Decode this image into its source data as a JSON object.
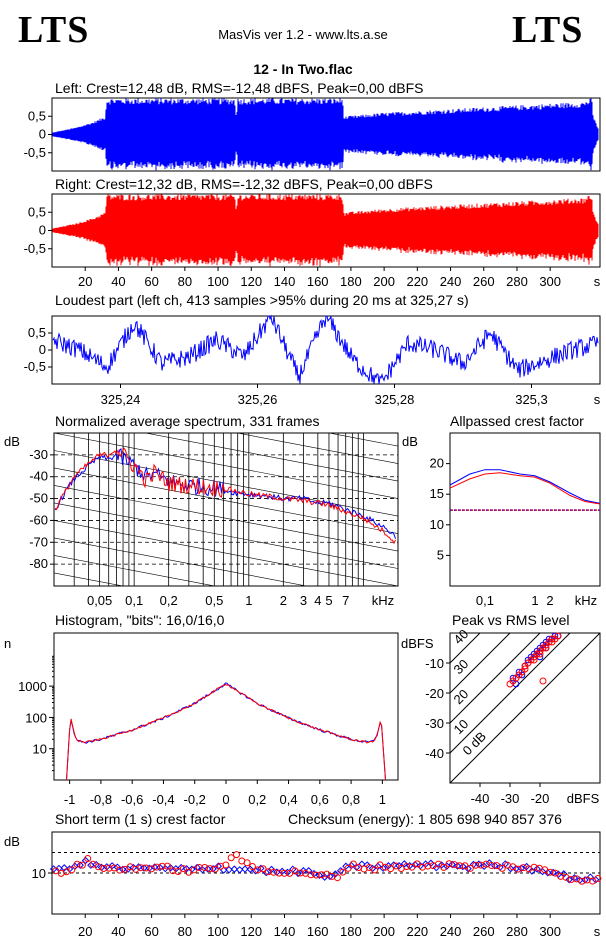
{
  "header": {
    "logo_left": "LTS",
    "logo_right": "LTS",
    "app_title": "MasVis ver 1.2 - www.lts.a.se",
    "file_title": "12 - In Two.flac"
  },
  "colors": {
    "left": "#0000ff",
    "right": "#ff0000"
  },
  "chart_data": [
    {
      "id": "left_waveform",
      "type": "area",
      "title": "Left: Crest=12,48 dB, RMS=-12,48 dBFS, Peak=0,00 dBFS",
      "yticks": [
        "0,5",
        "0",
        "-0,5"
      ],
      "ylim": [
        -1,
        1
      ],
      "xlim": [
        0,
        330
      ],
      "envelope": {
        "x": [
          0,
          5,
          15,
          25,
          32,
          33,
          100,
          110,
          111,
          112,
          175,
          176,
          177,
          200,
          240,
          280,
          320,
          322,
          325,
          326,
          330
        ],
        "amp": [
          0.05,
          0.1,
          0.2,
          0.35,
          0.5,
          1.0,
          1.0,
          1.0,
          0.55,
          1.0,
          1.0,
          0.45,
          0.5,
          0.6,
          0.7,
          0.8,
          0.9,
          0.95,
          1.0,
          0.5,
          0.05
        ]
      }
    },
    {
      "id": "right_waveform",
      "type": "area",
      "title": "Right: Crest=12,32 dB, RMS=-12,32 dBFS, Peak=0,00 dBFS",
      "yticks": [
        "0,5",
        "0",
        "-0,5"
      ],
      "ylim": [
        -1,
        1
      ],
      "xlim": [
        0,
        330
      ],
      "xticks": [
        "20",
        "40",
        "60",
        "80",
        "100",
        "120",
        "140",
        "160",
        "180",
        "200",
        "220",
        "240",
        "260",
        "280",
        "300"
      ],
      "xunit": "s",
      "envelope": {
        "x": [
          0,
          5,
          15,
          25,
          32,
          33,
          100,
          110,
          111,
          112,
          175,
          176,
          177,
          200,
          240,
          280,
          320,
          322,
          325,
          326,
          330
        ],
        "amp": [
          0.05,
          0.1,
          0.2,
          0.35,
          0.5,
          1.0,
          1.0,
          1.0,
          0.55,
          1.0,
          1.0,
          0.45,
          0.5,
          0.6,
          0.7,
          0.8,
          0.9,
          0.95,
          1.0,
          0.5,
          0.05
        ]
      }
    },
    {
      "id": "loudest_part",
      "type": "line",
      "title": "Loudest part (left  ch, 413 samples >95% during 20 ms at 325,27 s)",
      "yticks": [
        "0,5",
        "0",
        "-0,5"
      ],
      "ylim": [
        -1,
        1
      ],
      "xlim": [
        325.23,
        325.31
      ],
      "xticks": [
        "325,24",
        "325,26",
        "325,28",
        "325,3"
      ],
      "xtick_values": [
        325.24,
        325.26,
        325.28,
        325.3
      ],
      "xunit": "s",
      "coarse": {
        "x": [
          325.23,
          325.234,
          325.238,
          325.242,
          325.246,
          325.25,
          325.254,
          325.258,
          325.262,
          325.266,
          325.27,
          325.274,
          325.278,
          325.282,
          325.286,
          325.29,
          325.294,
          325.298,
          325.302,
          325.306,
          325.31
        ],
        "y": [
          0.3,
          0.0,
          -0.5,
          0.8,
          -0.4,
          -0.2,
          0.3,
          -0.2,
          1.0,
          -0.8,
          1.0,
          -0.3,
          -1.0,
          0.2,
          0.0,
          -0.4,
          0.5,
          -0.6,
          -0.3,
          0.0,
          0.2
        ]
      }
    },
    {
      "id": "avg_spectrum",
      "type": "line",
      "title": "Normalized average spectrum, 331 frames",
      "ylabel": "dB",
      "ylim": [
        -90,
        -20
      ],
      "yticks": [
        "-30",
        "-40",
        "-50",
        "-60",
        "-70",
        "-80"
      ],
      "ytick_values": [
        -30,
        -40,
        -50,
        -60,
        -70,
        -80
      ],
      "xscale": "log",
      "xlim": [
        0.02,
        20
      ],
      "xticks": [
        "0,05",
        "0,1",
        "0,2",
        "0,5",
        "1",
        "2",
        "3",
        "4",
        "5",
        "7"
      ],
      "xtick_values": [
        0.05,
        0.1,
        0.2,
        0.5,
        1,
        2,
        3,
        4,
        5,
        7
      ],
      "xunit": "kHz",
      "series": [
        {
          "name": "",
          "x": [
            0.02,
            0.025,
            0.03,
            0.04,
            0.05,
            0.06,
            0.07,
            0.1,
            0.13,
            0.15,
            0.2,
            0.3,
            0.5,
            0.7,
            1,
            1.5,
            2,
            3,
            4,
            5,
            7,
            10,
            15,
            20
          ],
          "y": [
            -56,
            -47,
            -41,
            -35,
            -31,
            -32,
            -30,
            -35,
            -40,
            -39,
            -42,
            -44,
            -45,
            -47,
            -48,
            -49,
            -50,
            -50,
            -52,
            -52,
            -55,
            -58,
            -63,
            -68
          ]
        },
        {
          "name": "",
          "x": [
            0.02,
            0.025,
            0.03,
            0.04,
            0.05,
            0.06,
            0.07,
            0.1,
            0.13,
            0.15,
            0.2,
            0.3,
            0.5,
            0.7,
            1,
            1.5,
            2,
            3,
            4,
            5,
            7,
            10,
            15,
            20
          ],
          "y": [
            -56,
            -47,
            -40,
            -34,
            -30,
            -30,
            -27,
            -35,
            -42,
            -38,
            -43,
            -44,
            -45,
            -46,
            -48,
            -49,
            -50,
            -51,
            -52,
            -53,
            -56,
            -59,
            -65,
            -71
          ]
        }
      ]
    },
    {
      "id": "allpassed_crest",
      "type": "line",
      "title": "Allpassed crest factor",
      "ylabel": "dB",
      "ylim": [
        0,
        25
      ],
      "yticks": [
        "20",
        "15",
        "10",
        "5"
      ],
      "ytick_values": [
        20,
        15,
        10,
        5
      ],
      "xscale": "log",
      "xlim": [
        0.02,
        20
      ],
      "xticks": [
        "0,1",
        "1",
        "2"
      ],
      "xtick_values": [
        0.1,
        1,
        2
      ],
      "xunit": "kHz",
      "reference": 12.4,
      "series": [
        {
          "name": "",
          "x": [
            0.02,
            0.05,
            0.1,
            0.2,
            0.5,
            1,
            2,
            5,
            10,
            20
          ],
          "y": [
            16.5,
            18.3,
            19.0,
            19.0,
            18.3,
            18.0,
            17.0,
            15.2,
            14.0,
            13.5
          ]
        },
        {
          "name": "",
          "x": [
            0.02,
            0.05,
            0.1,
            0.2,
            0.5,
            1,
            2,
            5,
            10,
            20
          ],
          "y": [
            16.0,
            17.5,
            18.3,
            18.5,
            18.0,
            17.8,
            16.8,
            14.8,
            13.8,
            13.4
          ]
        }
      ]
    },
    {
      "id": "histogram",
      "type": "line",
      "title": "Histogram, \"bits\": 16,0/16,0",
      "ylabel": "n",
      "yscale": "log",
      "ylim": [
        1,
        50000
      ],
      "yticks": [
        "1000",
        "100",
        "10"
      ],
      "ytick_values": [
        1000,
        100,
        10
      ],
      "xlim": [
        -1.1,
        1.1
      ],
      "xticks": [
        "-1",
        "-0,8",
        "-0,6",
        "-0,4",
        "-0,2",
        "0",
        "0,2",
        "0,4",
        "0,6",
        "0,8",
        "1"
      ],
      "xtick_values": [
        -1,
        -0.8,
        -0.6,
        -0.4,
        -0.2,
        0,
        0.2,
        0.4,
        0.6,
        0.8,
        1
      ],
      "series": [
        {
          "name": "",
          "x": [
            -1.0,
            -0.99,
            -0.97,
            -0.95,
            -0.9,
            -0.8,
            -0.6,
            -0.4,
            -0.2,
            0,
            0.2,
            0.4,
            0.6,
            0.8,
            0.9,
            0.95,
            0.97,
            0.99,
            1.0
          ],
          "y": [
            40,
            90,
            30,
            18,
            16,
            20,
            40,
            95,
            280,
            1200,
            280,
            95,
            40,
            20,
            16,
            18,
            30,
            90,
            40
          ]
        }
      ]
    },
    {
      "id": "peak_vs_rms",
      "type": "scatter",
      "title": "Peak vs RMS level",
      "ylabel": "dBFS",
      "xlabel": "dBFS",
      "xlim": [
        -50,
        0
      ],
      "ylim": [
        -50,
        0
      ],
      "xticks": [
        "-40",
        "-30",
        "-20"
      ],
      "xtick_values": [
        -40,
        -30,
        -20
      ],
      "yticks": [
        "-10",
        "-20",
        "-30",
        "-40"
      ],
      "ytick_values": [
        -10,
        -20,
        -30,
        -40
      ],
      "crest_lines": [
        "40",
        "30",
        "20",
        "10",
        "0 dB"
      ],
      "crest_values": [
        40,
        30,
        20,
        10,
        0
      ],
      "series": [
        {
          "name": "",
          "x": [
            -29,
            -27,
            -25,
            -24,
            -23,
            -22,
            -21,
            -20,
            -19,
            -18,
            -17,
            -16,
            -15,
            -14,
            -28,
            -26,
            -20,
            -18
          ],
          "y": [
            -15,
            -13,
            -11,
            -9,
            -8,
            -7,
            -6,
            -5,
            -4,
            -3,
            -2,
            -2,
            -1,
            -1,
            -17,
            -14,
            -8,
            -5
          ]
        },
        {
          "name": "",
          "x": [
            -30,
            -28,
            -26,
            -25,
            -24,
            -23,
            -22,
            -21,
            -20,
            -19,
            -18,
            -17,
            -16,
            -15,
            -14,
            -29,
            -27,
            -25,
            -22,
            -20,
            -18,
            -16,
            -19
          ],
          "y": [
            -17,
            -15,
            -13,
            -11,
            -10,
            -9,
            -8,
            -7,
            -6,
            -5,
            -4,
            -3,
            -2,
            -2,
            -1,
            -16,
            -14,
            -12,
            -9,
            -7,
            -5,
            -3,
            -16
          ]
        }
      ]
    },
    {
      "id": "short_term_crest",
      "type": "scatter",
      "title": "Short term (1 s) crest factor",
      "ylabel": "dB",
      "ylim": [
        0,
        20
      ],
      "yticks": [
        "10"
      ],
      "ytick_values": [
        10
      ],
      "xlim": [
        0,
        330
      ],
      "xticks": [
        "20",
        "40",
        "60",
        "80",
        "100",
        "120",
        "140",
        "160",
        "180",
        "200",
        "220",
        "240",
        "260",
        "280",
        "300"
      ],
      "xunit": "s",
      "reference_lines": [
        15,
        10
      ],
      "series": [
        {
          "name": "",
          "x": [
            2,
            10,
            20,
            30,
            40,
            50,
            60,
            70,
            80,
            90,
            100,
            110,
            120,
            130,
            140,
            150,
            160,
            170,
            180,
            190,
            200,
            210,
            220,
            230,
            240,
            250,
            260,
            270,
            280,
            290,
            300,
            310,
            320,
            328
          ],
          "y": [
            10.5,
            11.5,
            12.5,
            11.5,
            11.2,
            11,
            11.2,
            11,
            10.8,
            11.2,
            11.5,
            10.8,
            11,
            10.5,
            10.2,
            10.5,
            9.5,
            9,
            12,
            11.5,
            11.5,
            11.8,
            12,
            11.8,
            12,
            11.5,
            12,
            11.8,
            11.5,
            11,
            10.5,
            9,
            8.5,
            8.5
          ]
        },
        {
          "name": "",
          "x": [
            2,
            10,
            20,
            30,
            40,
            50,
            60,
            70,
            80,
            90,
            100,
            110,
            120,
            130,
            140,
            150,
            160,
            170,
            180,
            190,
            200,
            210,
            220,
            230,
            240,
            250,
            260,
            270,
            280,
            290,
            300,
            310,
            320,
            328
          ],
          "y": [
            10,
            11,
            13,
            11,
            11,
            11.5,
            11,
            11.2,
            10.5,
            11,
            11.5,
            14,
            11.2,
            10.8,
            10,
            10.2,
            9.5,
            8.8,
            11.8,
            11.2,
            11.6,
            11.5,
            11.8,
            12,
            11.8,
            11.5,
            11.8,
            11.6,
            11.4,
            11,
            10.2,
            8.8,
            8.5,
            8.2
          ]
        }
      ]
    }
  ],
  "checksum": "Checksum (energy):  1 805 698 940 857 376"
}
